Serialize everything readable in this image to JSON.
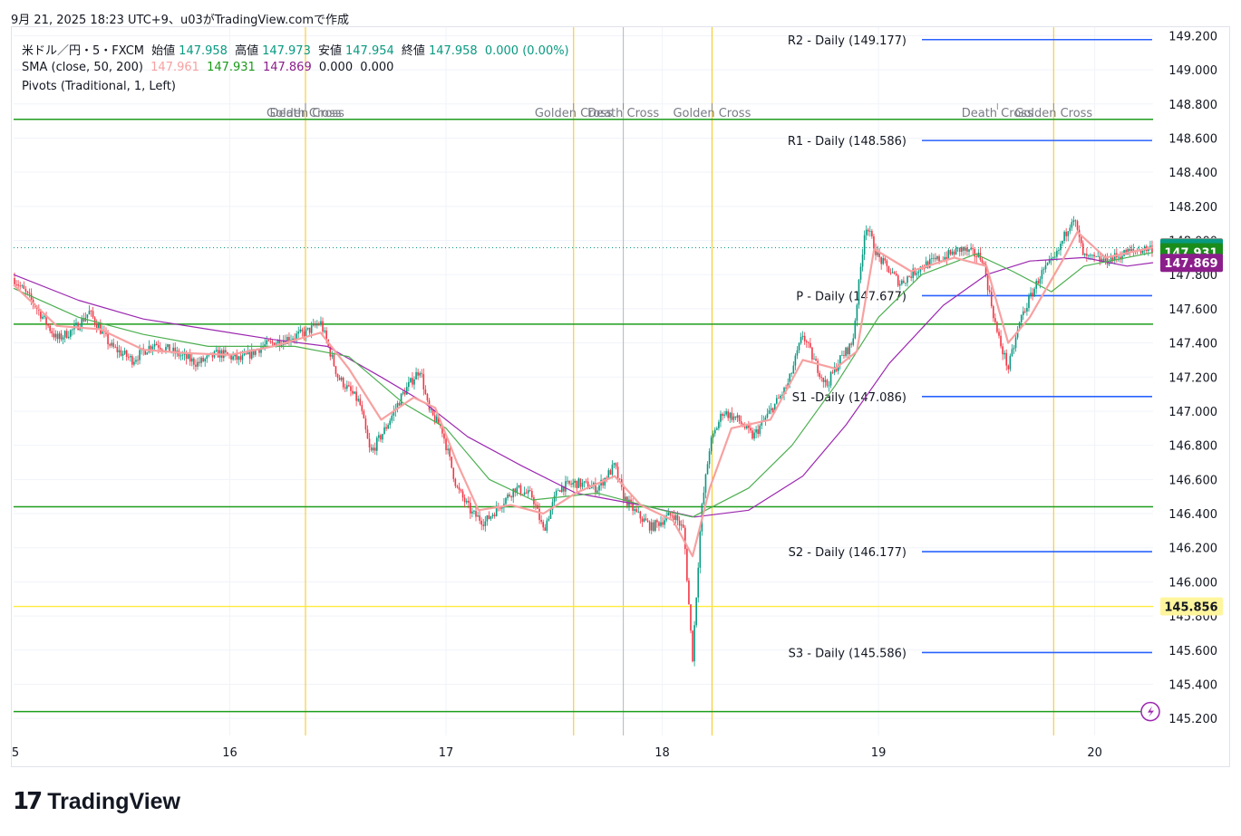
{
  "header": {
    "created_text": "9月 21, 2025 18:23 UTC+9、u03がTradingView.comで作成"
  },
  "legend": {
    "symbol": "米ドル／円・5・FXCM",
    "open_label": "始値",
    "open": "147.958",
    "high_label": "高値",
    "high": "147.973",
    "low_label": "安値",
    "low": "147.954",
    "close_label": "終値",
    "close": "147.958",
    "change": "0.000 (0.00%)",
    "sma_label": "SMA (close, 50, 200)",
    "sma_values": [
      "147.961",
      "147.931",
      "147.869",
      "0.000",
      "0.000"
    ],
    "pivots_label": "Pivots (Traditional, 1, Left)"
  },
  "brand": {
    "name": "TradingView"
  },
  "colors": {
    "up": "#089981",
    "down": "#f23645",
    "sma_fast": "#f7a1a1",
    "sma_50": "#4caf50",
    "sma_200": "#9c27b0",
    "pivot_line": "#2962ff",
    "hline_green": "#1e9e1e",
    "hline_yellow": "#ffeb3b",
    "vline": "#f5c518",
    "vline_gray": "#b2b5be"
  },
  "chart_data": {
    "type": "candlestick",
    "y_axis": {
      "min": 145.1,
      "max": 149.25,
      "ticks": [
        "145.200",
        "145.400",
        "145.600",
        "145.800",
        "146.000",
        "146.200",
        "146.400",
        "146.600",
        "146.800",
        "147.000",
        "147.200",
        "147.400",
        "147.600",
        "147.800",
        "148.000",
        "148.200",
        "148.400",
        "148.600",
        "148.800",
        "149.000",
        "149.200"
      ]
    },
    "x_axis": {
      "labels": [
        "5",
        "16",
        "17",
        "18",
        "19",
        "20"
      ],
      "day_positions": [
        15,
        16,
        17,
        18,
        19,
        20
      ]
    },
    "x_range": [
      15.0,
      20.27
    ],
    "price_path": [
      [
        15.0,
        147.78
      ],
      [
        15.1,
        147.62
      ],
      [
        15.2,
        147.42
      ],
      [
        15.28,
        147.48
      ],
      [
        15.35,
        147.58
      ],
      [
        15.45,
        147.38
      ],
      [
        15.55,
        147.3
      ],
      [
        15.65,
        147.4
      ],
      [
        15.75,
        147.34
      ],
      [
        15.85,
        147.28
      ],
      [
        15.95,
        147.34
      ],
      [
        16.05,
        147.3
      ],
      [
        16.15,
        147.38
      ],
      [
        16.25,
        147.42
      ],
      [
        16.35,
        147.46
      ],
      [
        16.42,
        147.52
      ],
      [
        16.5,
        147.2
      ],
      [
        16.6,
        147.05
      ],
      [
        16.65,
        146.75
      ],
      [
        16.72,
        146.9
      ],
      [
        16.8,
        147.1
      ],
      [
        16.88,
        147.25
      ],
      [
        16.92,
        147.0
      ],
      [
        16.98,
        146.9
      ],
      [
        17.05,
        146.55
      ],
      [
        17.12,
        146.4
      ],
      [
        17.18,
        146.35
      ],
      [
        17.25,
        146.45
      ],
      [
        17.32,
        146.55
      ],
      [
        17.4,
        146.5
      ],
      [
        17.45,
        146.3
      ],
      [
        17.52,
        146.55
      ],
      [
        17.6,
        146.58
      ],
      [
        17.7,
        146.55
      ],
      [
        17.78,
        146.68
      ],
      [
        17.82,
        146.5
      ],
      [
        17.88,
        146.4
      ],
      [
        17.95,
        146.32
      ],
      [
        18.05,
        146.4
      ],
      [
        18.1,
        146.3
      ],
      [
        18.14,
        145.55
      ],
      [
        18.18,
        146.4
      ],
      [
        18.22,
        146.8
      ],
      [
        18.28,
        147.0
      ],
      [
        18.35,
        146.95
      ],
      [
        18.42,
        146.85
      ],
      [
        18.5,
        147.0
      ],
      [
        18.58,
        147.15
      ],
      [
        18.65,
        147.45
      ],
      [
        18.7,
        147.3
      ],
      [
        18.76,
        147.15
      ],
      [
        18.82,
        147.3
      ],
      [
        18.88,
        147.4
      ],
      [
        18.94,
        148.1
      ],
      [
        19.0,
        147.9
      ],
      [
        19.1,
        147.75
      ],
      [
        19.2,
        147.85
      ],
      [
        19.3,
        147.9
      ],
      [
        19.38,
        147.95
      ],
      [
        19.48,
        147.9
      ],
      [
        19.55,
        147.45
      ],
      [
        19.6,
        147.25
      ],
      [
        19.66,
        147.55
      ],
      [
        19.75,
        147.8
      ],
      [
        19.82,
        147.9
      ],
      [
        19.9,
        148.15
      ],
      [
        19.95,
        147.9
      ],
      [
        20.05,
        147.88
      ],
      [
        20.15,
        147.93
      ],
      [
        20.27,
        147.96
      ]
    ],
    "sma_fast_path": [
      [
        15.0,
        147.74
      ],
      [
        15.2,
        147.5
      ],
      [
        15.4,
        147.48
      ],
      [
        15.6,
        147.36
      ],
      [
        15.8,
        147.34
      ],
      [
        16.0,
        147.33
      ],
      [
        16.2,
        147.38
      ],
      [
        16.42,
        147.46
      ],
      [
        16.55,
        147.25
      ],
      [
        16.7,
        146.95
      ],
      [
        16.85,
        147.08
      ],
      [
        16.95,
        147.02
      ],
      [
        17.05,
        146.7
      ],
      [
        17.15,
        146.42
      ],
      [
        17.3,
        146.45
      ],
      [
        17.45,
        146.4
      ],
      [
        17.6,
        146.52
      ],
      [
        17.78,
        146.62
      ],
      [
        17.9,
        146.45
      ],
      [
        18.05,
        146.36
      ],
      [
        18.14,
        146.15
      ],
      [
        18.22,
        146.55
      ],
      [
        18.32,
        146.9
      ],
      [
        18.5,
        146.95
      ],
      [
        18.65,
        147.3
      ],
      [
        18.8,
        147.25
      ],
      [
        18.9,
        147.35
      ],
      [
        18.98,
        147.95
      ],
      [
        19.15,
        147.82
      ],
      [
        19.35,
        147.9
      ],
      [
        19.5,
        147.85
      ],
      [
        19.6,
        147.4
      ],
      [
        19.7,
        147.55
      ],
      [
        19.85,
        147.88
      ],
      [
        19.92,
        148.05
      ],
      [
        20.05,
        147.9
      ],
      [
        20.27,
        147.96
      ]
    ],
    "sma_50_path": [
      [
        15.0,
        147.72
      ],
      [
        15.3,
        147.55
      ],
      [
        15.6,
        147.45
      ],
      [
        15.9,
        147.38
      ],
      [
        16.3,
        147.38
      ],
      [
        16.55,
        147.32
      ],
      [
        16.8,
        147.05
      ],
      [
        17.0,
        146.9
      ],
      [
        17.2,
        146.6
      ],
      [
        17.4,
        146.48
      ],
      [
        17.7,
        146.52
      ],
      [
        18.0,
        146.42
      ],
      [
        18.14,
        146.38
      ],
      [
        18.4,
        146.55
      ],
      [
        18.6,
        146.8
      ],
      [
        18.8,
        147.15
      ],
      [
        19.0,
        147.55
      ],
      [
        19.2,
        147.8
      ],
      [
        19.45,
        147.92
      ],
      [
        19.62,
        147.82
      ],
      [
        19.8,
        147.7
      ],
      [
        19.95,
        147.85
      ],
      [
        20.27,
        147.93
      ]
    ],
    "sma_200_path": [
      [
        15.0,
        147.8
      ],
      [
        15.3,
        147.65
      ],
      [
        15.6,
        147.54
      ],
      [
        15.9,
        147.48
      ],
      [
        16.2,
        147.42
      ],
      [
        16.45,
        147.38
      ],
      [
        16.7,
        147.2
      ],
      [
        16.9,
        147.05
      ],
      [
        17.1,
        146.85
      ],
      [
        17.35,
        146.68
      ],
      [
        17.6,
        146.52
      ],
      [
        17.9,
        146.45
      ],
      [
        18.15,
        146.38
      ],
      [
        18.4,
        146.42
      ],
      [
        18.65,
        146.62
      ],
      [
        18.85,
        146.92
      ],
      [
        19.05,
        147.28
      ],
      [
        19.3,
        147.62
      ],
      [
        19.5,
        147.8
      ],
      [
        19.7,
        147.88
      ],
      [
        19.95,
        147.9
      ],
      [
        20.15,
        147.85
      ],
      [
        20.27,
        147.87
      ]
    ],
    "horizontal_lines": [
      {
        "price": 148.71,
        "color": "green"
      },
      {
        "price": 147.51,
        "color": "green"
      },
      {
        "price": 146.44,
        "color": "green"
      },
      {
        "price": 145.24,
        "color": "green"
      },
      {
        "price": 145.856,
        "color": "yellow",
        "label": "145.856"
      }
    ],
    "pivots": [
      {
        "name": "R2 - Daily (149.177)",
        "price": 149.177
      },
      {
        "name": "R1 - Daily (148.586)",
        "price": 148.586
      },
      {
        "name": "P - Daily (147.677)",
        "price": 147.677
      },
      {
        "name": "S1 -Daily (147.086)",
        "price": 147.086
      },
      {
        "name": "S2 - Daily (146.177)",
        "price": 146.177
      },
      {
        "name": "S3 - Daily (145.586)",
        "price": 145.586
      }
    ],
    "crosses": [
      {
        "t": 16.35,
        "label": "Golden Cross",
        "color": "gold"
      },
      {
        "t": 16.35,
        "label": "Death Cross",
        "color": "none"
      },
      {
        "t": 17.59,
        "label": "Golden Cross",
        "color": "gold"
      },
      {
        "t": 17.82,
        "label": "Death Cross",
        "color": "gray"
      },
      {
        "t": 18.23,
        "label": "Golden Cross",
        "color": "gold"
      },
      {
        "t": 19.55,
        "label": "Death Cross",
        "color": "none"
      },
      {
        "t": 19.81,
        "label": "Golden Cross",
        "color": "gold"
      }
    ],
    "price_badges": [
      {
        "value": "147.961",
        "price": 147.961,
        "color": "#f7a1a1"
      },
      {
        "value": "147.958",
        "price": 147.958,
        "color": "#089981"
      },
      {
        "value": "147.931",
        "price": 147.931,
        "color": "#1a8c1a"
      },
      {
        "value": "147.869",
        "price": 147.869,
        "color": "#8b1e8b"
      },
      {
        "value": "145.856",
        "price": 145.856,
        "color": "#fff59d"
      }
    ],
    "last_price": 147.958,
    "candle_count": 610
  }
}
